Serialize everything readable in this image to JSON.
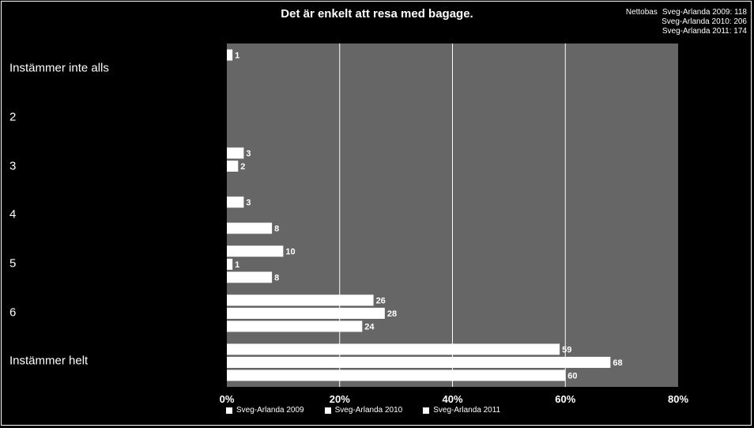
{
  "chart_data": {
    "type": "bar",
    "orientation": "horizontal",
    "title": "Det är enkelt att resa med bagage.",
    "base_label": "Nettobas",
    "base_counts": [
      "Sveg-Arlanda 2009: 118",
      "Sveg-Arlanda 2010: 206",
      "Sveg-Arlanda 2011: 174"
    ],
    "categories": [
      "Instämmer inte alls",
      "2",
      "3",
      "4",
      "5",
      "6",
      "Instämmer helt"
    ],
    "series": [
      {
        "name": "Sveg-Arlanda 2009",
        "values": [
          1,
          null,
          3,
          3,
          10,
          26,
          59
        ]
      },
      {
        "name": "Sveg-Arlanda 2010",
        "values": [
          null,
          null,
          2,
          null,
          1,
          28,
          68
        ]
      },
      {
        "name": "Sveg-Arlanda 2011",
        "values": [
          null,
          null,
          null,
          8,
          8,
          24,
          60
        ]
      }
    ],
    "xlim": [
      0,
      80
    ],
    "xticks": [
      "0%",
      "20%",
      "40%",
      "60%",
      "80%"
    ],
    "grid": true,
    "legend_position": "bottom",
    "colors": {
      "background": "#000000",
      "plot_area": "#666666",
      "bars": "#ffffff",
      "grid": "#ffffff"
    }
  }
}
